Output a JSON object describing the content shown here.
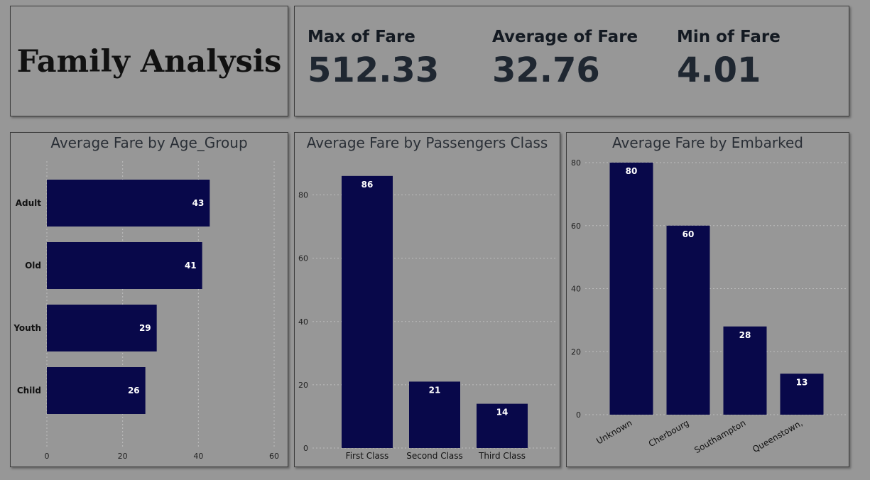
{
  "title": "Family Analysis",
  "kpis": [
    {
      "label": "Max of Fare",
      "value": "512.33"
    },
    {
      "label": "Average of Fare",
      "value": "32.76"
    },
    {
      "label": "Min of Fare",
      "value": "4.01"
    }
  ],
  "colors": {
    "bar": "#08084a",
    "background": "#979797"
  },
  "chart_data": [
    {
      "type": "bar",
      "orientation": "horizontal",
      "title": "Average Fare by Age_Group",
      "categories": [
        "Adult",
        "Old",
        "Youth",
        "Child"
      ],
      "values": [
        43,
        41,
        29,
        26
      ],
      "xlim": [
        0,
        60
      ],
      "xticks": [
        0,
        20,
        40,
        60
      ],
      "grid": true
    },
    {
      "type": "bar",
      "orientation": "vertical",
      "title": "Average Fare by Passengers Class",
      "categories": [
        "First Class",
        "Second Class",
        "Third Class"
      ],
      "values": [
        86,
        21,
        14
      ],
      "ylim": [
        0,
        90
      ],
      "yticks": [
        0,
        20,
        40,
        60,
        80
      ],
      "grid": true
    },
    {
      "type": "bar",
      "orientation": "vertical",
      "title": "Average Fare by Embarked",
      "categories": [
        "Unknown",
        "Cherbourg",
        "Southampton",
        "Queenstown,"
      ],
      "values": [
        80,
        60,
        28,
        13
      ],
      "ylim": [
        0,
        80
      ],
      "yticks": [
        0,
        20,
        40,
        60,
        80
      ],
      "grid": true
    }
  ]
}
